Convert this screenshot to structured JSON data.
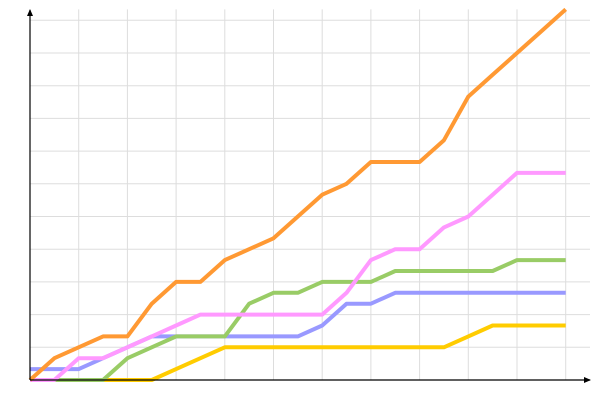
{
  "chart_data": {
    "type": "line",
    "title": "",
    "xlabel": "",
    "ylabel": "",
    "x": [
      0,
      1,
      2,
      3,
      4,
      5,
      6,
      7,
      8,
      9,
      10,
      11,
      12,
      13,
      14,
      15,
      16,
      17,
      18,
      19,
      20,
      21,
      22
    ],
    "xlim": [
      0,
      22.5
    ],
    "ylim": [
      0,
      34
    ],
    "grid": true,
    "x_grid_step": 2,
    "y_grid_step": 3,
    "legend": "none",
    "series": [
      {
        "color": "#ffcc00",
        "values": [
          0,
          0,
          0,
          0,
          0,
          0,
          1,
          2,
          3,
          3,
          3,
          3,
          3,
          3,
          3,
          3,
          3,
          3,
          4,
          5,
          5,
          5,
          5
        ]
      },
      {
        "color": "#9999ff",
        "values": [
          1,
          1,
          1,
          2,
          3,
          4,
          4,
          4,
          4,
          4,
          4,
          4,
          5,
          7,
          7,
          8,
          8,
          8,
          8,
          8,
          8,
          8,
          8
        ]
      },
      {
        "color": "#99cc66",
        "values": [
          0,
          0,
          0,
          0,
          2,
          3,
          4,
          4,
          4,
          7,
          8,
          8,
          9,
          9,
          9,
          10,
          10,
          10,
          10,
          10,
          11,
          11,
          11
        ]
      },
      {
        "color": "#ff99ff",
        "values": [
          0,
          0,
          2,
          2,
          3,
          4,
          5,
          6,
          6,
          6,
          6,
          6,
          6,
          8,
          11,
          12,
          12,
          14,
          15,
          17,
          19,
          19,
          19
        ]
      },
      {
        "color": "#ff9933",
        "values": [
          0,
          2,
          3,
          4,
          4,
          7,
          9,
          9,
          11,
          12,
          13,
          15,
          17,
          18,
          20,
          20,
          20,
          22,
          26,
          28,
          30,
          32,
          34
        ]
      }
    ]
  }
}
